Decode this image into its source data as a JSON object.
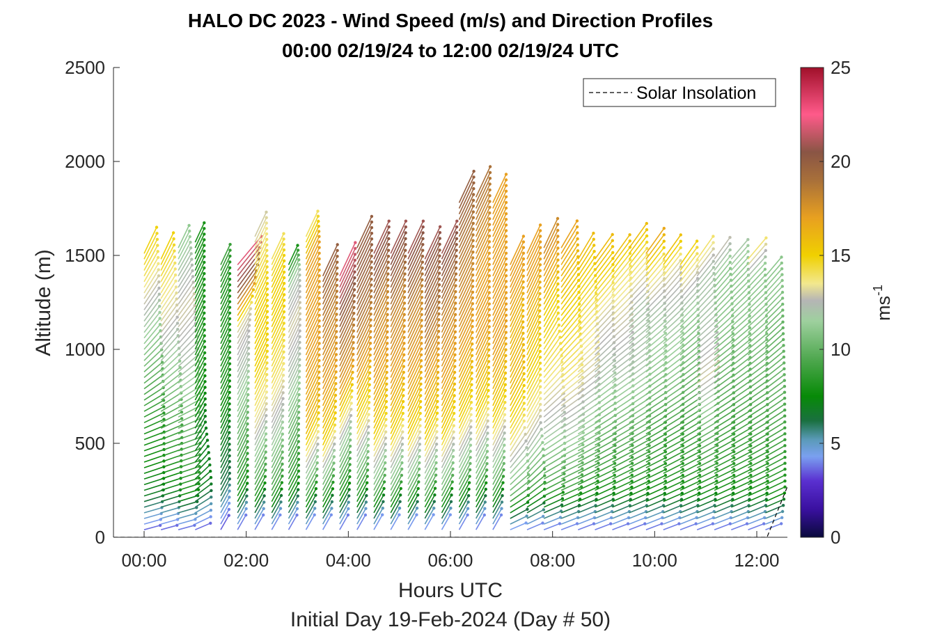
{
  "chart_data": {
    "type": "quiver",
    "title": "HALO DC 2023 - Wind Speed (m/s) and Direction Profiles",
    "subtitle": "00:00 02/19/24 to 12:00 02/19/24  UTC",
    "xlabel": "Hours UTC",
    "ylabel": "Altitude (m)",
    "footer": "Initial Day 19-Feb-2024 (Day # 50)",
    "xlim": [
      -0.6,
      12.6
    ],
    "ylim": [
      0,
      2500
    ],
    "xticks": [
      "00:00",
      "02:00",
      "04:00",
      "06:00",
      "08:00",
      "10:00",
      "12:00"
    ],
    "xtick_values": [
      0,
      2,
      4,
      6,
      8,
      10,
      12
    ],
    "yticks": [
      "0",
      "500",
      "1000",
      "1500",
      "2000",
      "2500"
    ],
    "ytick_values": [
      0,
      500,
      1000,
      1500,
      2000,
      2500
    ],
    "legend": {
      "label": "Solar Insolation",
      "placement": "top-right",
      "style": "dashed",
      "color": "#000000"
    },
    "colorbar": {
      "label": "ms",
      "label_exponent": "-1",
      "range": [
        0,
        25
      ],
      "ticks": [
        "0",
        "5",
        "10",
        "15",
        "20",
        "25"
      ],
      "tick_values": [
        0,
        5,
        10,
        15,
        20,
        25
      ],
      "stops": [
        {
          "v": 0,
          "color": "#0a0a3c"
        },
        {
          "v": 1.5,
          "color": "#3a10a0"
        },
        {
          "v": 3,
          "color": "#5a30d0"
        },
        {
          "v": 4.3,
          "color": "#7aa0f0"
        },
        {
          "v": 5.2,
          "color": "#5a9ab8"
        },
        {
          "v": 6.2,
          "color": "#1a7040"
        },
        {
          "v": 7.5,
          "color": "#078a07"
        },
        {
          "v": 9.5,
          "color": "#50a850"
        },
        {
          "v": 11.5,
          "color": "#9ed09e"
        },
        {
          "v": 12.6,
          "color": "#b5b5b5"
        },
        {
          "v": 13.5,
          "color": "#f2e88e"
        },
        {
          "v": 15,
          "color": "#f0d000"
        },
        {
          "v": 17,
          "color": "#e8a020"
        },
        {
          "v": 19,
          "color": "#a8703a"
        },
        {
          "v": 20.5,
          "color": "#8a5545"
        },
        {
          "v": 22.5,
          "color": "#ff5a8a"
        },
        {
          "v": 25,
          "color": "#a0102a"
        }
      ]
    },
    "solar_insolation": [
      {
        "x": -0.6,
        "y": 0
      },
      {
        "x": 12.2,
        "y": 0
      },
      {
        "x": 12.6,
        "y": 270
      }
    ],
    "profile_times": [
      0,
      0.33,
      0.67,
      1.0,
      1.5,
      1.83,
      2.17,
      2.5,
      2.83,
      3.17,
      3.5,
      3.83,
      4.17,
      4.5,
      4.83,
      5.17,
      5.5,
      5.83,
      6.17,
      6.5,
      6.83,
      7.17,
      7.5,
      7.83,
      8.17,
      8.5,
      8.83,
      9.17,
      9.5,
      9.83,
      10.17,
      10.5,
      10.83,
      11.17,
      11.5,
      11.83,
      12.17
    ],
    "profile_tops": [
      1530,
      1490,
      1560,
      1570,
      1460,
      1450,
      1600,
      1490,
      1450,
      1600,
      1400,
      1400,
      1560,
      1530,
      1530,
      1530,
      1500,
      1530,
      1780,
      1820,
      1780,
      1450,
      1520,
      1560,
      1560,
      1500,
      1500,
      1500,
      1560,
      1530,
      1500,
      1460,
      1490,
      1500,
      1500,
      1490,
      1400
    ],
    "low_level_speed": 3,
    "speed_profile": [
      [
        0,
        7,
        8,
        10,
        12,
        14,
        15
      ],
      [
        0,
        7,
        9,
        11,
        13,
        14,
        15
      ],
      [
        0,
        8,
        10,
        12,
        13,
        12,
        11
      ],
      [
        0,
        7,
        7,
        8,
        8,
        8,
        8
      ],
      [
        0,
        6,
        7,
        8,
        8,
        8,
        9
      ],
      [
        0,
        8,
        10,
        12,
        13,
        20,
        22
      ],
      [
        0,
        9,
        13,
        15,
        15,
        14,
        13
      ],
      [
        0,
        9,
        12,
        14,
        15,
        15,
        14
      ],
      [
        0,
        8,
        10,
        12,
        13,
        12,
        8
      ],
      [
        0,
        10,
        16,
        17,
        17,
        17,
        14
      ],
      [
        0,
        9,
        15,
        17,
        18,
        19,
        20
      ],
      [
        0,
        8,
        12,
        17,
        19,
        21,
        22
      ],
      [
        0,
        9,
        14,
        17,
        19,
        20,
        20
      ],
      [
        0,
        10,
        15,
        17,
        18,
        20,
        21
      ],
      [
        0,
        10,
        15,
        17,
        18,
        20,
        21
      ],
      [
        0,
        10,
        15,
        17,
        18,
        20,
        21
      ],
      [
        0,
        10,
        15,
        17,
        19,
        20,
        21
      ],
      [
        0,
        10,
        15,
        17,
        18,
        20,
        21
      ],
      [
        0,
        10,
        15,
        17,
        18,
        19,
        20
      ],
      [
        0,
        10,
        15,
        17,
        17,
        18,
        19
      ],
      [
        0,
        10,
        15,
        17,
        17,
        17,
        17
      ],
      [
        0,
        10,
        14,
        16,
        16,
        17,
        17
      ],
      [
        0,
        9,
        13,
        15,
        16,
        17,
        17
      ],
      [
        0,
        9,
        12,
        14,
        15,
        17,
        18
      ],
      [
        0,
        9,
        12,
        14,
        15,
        16,
        17
      ],
      [
        0,
        8,
        11,
        13,
        14,
        15,
        16
      ],
      [
        0,
        8,
        10,
        12,
        13,
        15,
        16
      ],
      [
        0,
        8,
        10,
        12,
        13,
        14,
        16
      ],
      [
        0,
        8,
        10,
        12,
        12,
        14,
        16
      ],
      [
        0,
        8,
        9,
        11,
        12,
        14,
        17
      ],
      [
        0,
        8,
        9,
        11,
        12,
        13,
        16
      ],
      [
        0,
        8,
        9,
        10,
        11,
        13,
        15
      ],
      [
        0,
        8,
        10,
        13,
        12,
        12,
        14
      ],
      [
        0,
        8,
        9,
        10,
        11,
        11,
        13
      ],
      [
        0,
        8,
        9,
        10,
        11,
        11,
        12
      ],
      [
        0,
        8,
        9,
        10,
        11,
        11,
        14
      ],
      [
        0,
        8,
        9,
        10,
        10,
        11,
        11
      ]
    ],
    "direction_tilt_deg": [
      [
        75,
        70,
        40,
        25
      ],
      [
        75,
        70,
        40,
        25
      ],
      [
        75,
        70,
        40,
        25
      ],
      [
        70,
        30,
        25,
        25
      ],
      [
        30,
        25,
        25,
        25
      ],
      [
        30,
        25,
        25,
        40
      ],
      [
        30,
        25,
        25,
        25
      ],
      [
        30,
        25,
        25,
        25
      ],
      [
        30,
        25,
        25,
        25
      ],
      [
        30,
        25,
        25,
        25
      ],
      [
        30,
        25,
        25,
        25
      ],
      [
        30,
        25,
        25,
        25
      ],
      [
        30,
        25,
        25,
        25
      ],
      [
        30,
        25,
        25,
        25
      ],
      [
        30,
        25,
        25,
        25
      ],
      [
        30,
        25,
        25,
        25
      ],
      [
        30,
        25,
        25,
        25
      ],
      [
        30,
        25,
        25,
        25
      ],
      [
        30,
        25,
        25,
        25
      ],
      [
        30,
        25,
        25,
        25
      ],
      [
        30,
        25,
        25,
        25
      ],
      [
        70,
        30,
        25,
        25
      ],
      [
        70,
        30,
        25,
        25
      ],
      [
        70,
        55,
        30,
        25
      ],
      [
        70,
        60,
        40,
        30
      ],
      [
        70,
        60,
        45,
        30
      ],
      [
        70,
        60,
        45,
        35
      ],
      [
        70,
        60,
        50,
        35
      ],
      [
        70,
        60,
        50,
        35
      ],
      [
        70,
        60,
        50,
        35
      ],
      [
        70,
        60,
        50,
        35
      ],
      [
        70,
        60,
        50,
        35
      ],
      [
        70,
        60,
        50,
        35
      ],
      [
        70,
        60,
        50,
        35
      ],
      [
        70,
        60,
        50,
        40
      ],
      [
        70,
        60,
        50,
        40
      ],
      [
        70,
        60,
        50,
        40
      ]
    ]
  }
}
